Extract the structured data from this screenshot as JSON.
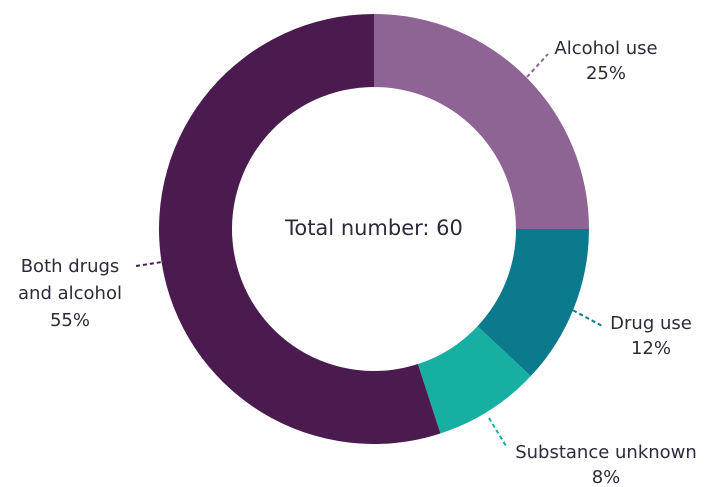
{
  "chart_data": {
    "type": "pie",
    "donut": true,
    "center_label": "Total number: 60",
    "slices": [
      {
        "label_lines": [
          "Alcohol use"
        ],
        "value_label": "25%",
        "value": 25,
        "color": "#8d6493"
      },
      {
        "label_lines": [
          "Drug use"
        ],
        "value_label": "12%",
        "value": 12,
        "color": "#0b7a8c"
      },
      {
        "label_lines": [
          "Substance unknown"
        ],
        "value_label": "8%",
        "value": 8,
        "color": "#17afa2"
      },
      {
        "label_lines": [
          "Both drugs",
          "and alcohol"
        ],
        "value_label": "55%",
        "value": 55,
        "color": "#4b1b50"
      }
    ],
    "legend": "none"
  }
}
